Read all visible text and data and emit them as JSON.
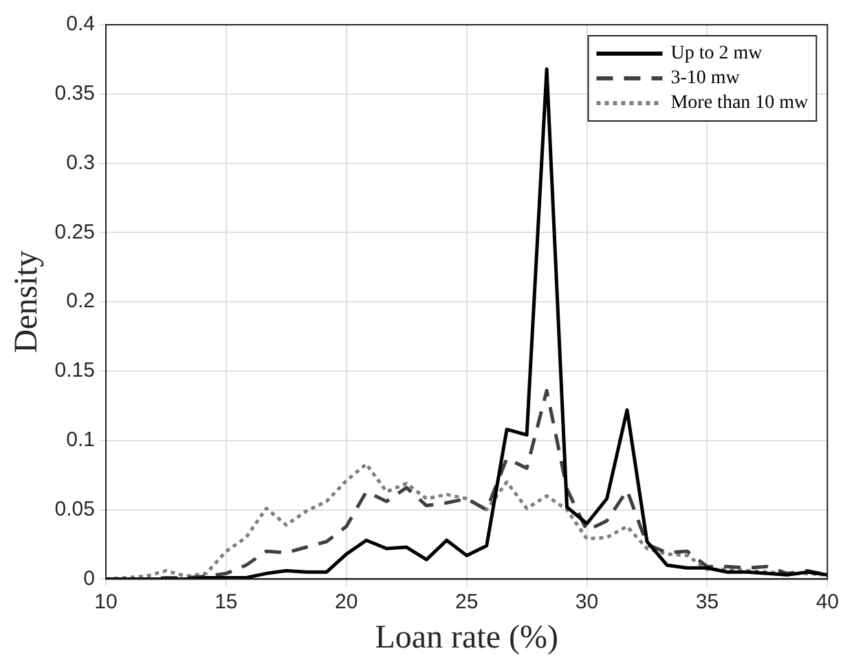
{
  "chart_data": {
    "type": "line",
    "xlabel": "Loan rate (%)",
    "ylabel": "Density",
    "x": [
      10,
      10.83,
      11.67,
      12.5,
      13.33,
      14.17,
      15,
      15.83,
      16.67,
      17.5,
      18.33,
      19.17,
      20,
      20.83,
      21.67,
      22.5,
      23.33,
      24.17,
      25,
      25.83,
      26.67,
      27.5,
      28.33,
      29.17,
      30,
      30.83,
      31.67,
      32.5,
      33.33,
      34.17,
      35,
      35.83,
      36.67,
      37.5,
      38.33,
      39.17,
      40
    ],
    "series": [
      {
        "name": "Up to 2 mw",
        "color": "#000000",
        "line_style": "solid",
        "values": [
          0,
          0,
          0,
          0,
          0,
          0.001,
          0.001,
          0.001,
          0.004,
          0.006,
          0.005,
          0.005,
          0.018,
          0.028,
          0.022,
          0.023,
          0.014,
          0.028,
          0.017,
          0.024,
          0.108,
          0.104,
          0.368,
          0.052,
          0.04,
          0.058,
          0.122,
          0.027,
          0.01,
          0.008,
          0.008,
          0.005,
          0.005,
          0.004,
          0.003,
          0.005,
          0.003
        ]
      },
      {
        "name": "3-10 mw",
        "color": "#404040",
        "line_style": "dashed",
        "values": [
          0,
          0,
          0,
          0.001,
          0.001,
          0.002,
          0.004,
          0.01,
          0.02,
          0.019,
          0.023,
          0.027,
          0.038,
          0.063,
          0.056,
          0.066,
          0.053,
          0.055,
          0.058,
          0.05,
          0.087,
          0.08,
          0.136,
          0.065,
          0.035,
          0.042,
          0.064,
          0.025,
          0.019,
          0.02,
          0.009,
          0.009,
          0.008,
          0.009,
          0.004,
          0.006,
          0.003
        ]
      },
      {
        "name": "More than 10 mw",
        "color": "#808080",
        "line_style": "dotted",
        "values": [
          0,
          0.001,
          0.002,
          0.006,
          0.002,
          0.004,
          0.02,
          0.03,
          0.051,
          0.039,
          0.049,
          0.056,
          0.071,
          0.083,
          0.063,
          0.069,
          0.058,
          0.061,
          0.058,
          0.05,
          0.07,
          0.051,
          0.06,
          0.05,
          0.029,
          0.03,
          0.038,
          0.022,
          0.018,
          0.017,
          0.007,
          0.007,
          0.006,
          0.005,
          0.004,
          0.004,
          0.003
        ]
      }
    ],
    "xlim": [
      10,
      40
    ],
    "xticks": [
      10,
      15,
      20,
      25,
      30,
      35,
      40
    ],
    "ylim": [
      0,
      0.4
    ],
    "yticks": [
      0,
      0.05,
      0.1,
      0.15,
      0.2,
      0.25,
      0.3,
      0.35,
      0.4
    ],
    "grid": true,
    "legend": "top right",
    "marker": "none"
  }
}
